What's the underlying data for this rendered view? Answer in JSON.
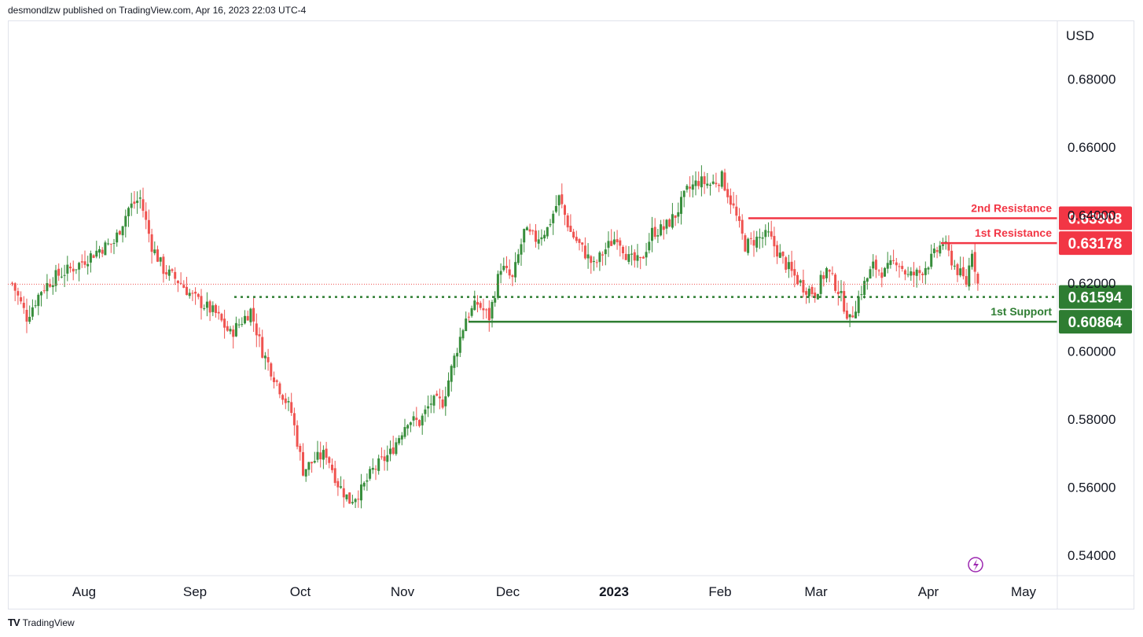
{
  "header": {
    "published_text": "desmondlzw published on TradingView.com, Apr 16, 2023 22:03 UTC-4"
  },
  "footer": {
    "logo_text": "TV",
    "brand": "TradingView"
  },
  "colors": {
    "up": "#388e3c",
    "down": "#ef5350",
    "resistance": "#f23645",
    "support": "#2e7d32",
    "current_price_line": "#ef5350",
    "replay_icon": "#9c27b0"
  },
  "chart_data": {
    "type": "candlestick",
    "currency_label": "USD",
    "ylim": [
      0.534,
      0.697
    ],
    "y_ticks": [
      "0.68000",
      "0.66000",
      "0.64000",
      "0.62000",
      "0.60000",
      "0.58000",
      "0.56000",
      "0.54000"
    ],
    "x_axis_labels": [
      "Aug",
      "Sep",
      "Oct",
      "Nov",
      "Dec",
      "2023",
      "Feb",
      "Mar",
      "Apr",
      "May"
    ],
    "last_price": 0.6197,
    "levels": [
      {
        "label": "2nd Resistance",
        "value": "0.63908",
        "kind": "resistance"
      },
      {
        "label": "1st Resistance",
        "value": "0.63178",
        "kind": "resistance"
      },
      {
        "label": "",
        "value": "0.61594",
        "kind": "support-dotted"
      },
      {
        "label": "1st Support",
        "value": "0.60864",
        "kind": "support"
      }
    ],
    "anchors": [
      {
        "i": 0,
        "v": 0.62
      },
      {
        "i": 5,
        "v": 0.61
      },
      {
        "i": 10,
        "v": 0.618
      },
      {
        "i": 15,
        "v": 0.622
      },
      {
        "i": 22,
        "v": 0.625
      },
      {
        "i": 30,
        "v": 0.63
      },
      {
        "i": 35,
        "v": 0.632
      },
      {
        "i": 40,
        "v": 0.642
      },
      {
        "i": 44,
        "v": 0.645
      },
      {
        "i": 48,
        "v": 0.631
      },
      {
        "i": 52,
        "v": 0.624
      },
      {
        "i": 58,
        "v": 0.62
      },
      {
        "i": 62,
        "v": 0.616
      },
      {
        "i": 70,
        "v": 0.611
      },
      {
        "i": 75,
        "v": 0.605
      },
      {
        "i": 82,
        "v": 0.612
      },
      {
        "i": 86,
        "v": 0.6
      },
      {
        "i": 92,
        "v": 0.589
      },
      {
        "i": 96,
        "v": 0.582
      },
      {
        "i": 100,
        "v": 0.565
      },
      {
        "i": 104,
        "v": 0.568
      },
      {
        "i": 108,
        "v": 0.57
      },
      {
        "i": 112,
        "v": 0.561
      },
      {
        "i": 116,
        "v": 0.556
      },
      {
        "i": 120,
        "v": 0.559
      },
      {
        "i": 124,
        "v": 0.565
      },
      {
        "i": 130,
        "v": 0.57
      },
      {
        "i": 136,
        "v": 0.58
      },
      {
        "i": 140,
        "v": 0.579
      },
      {
        "i": 144,
        "v": 0.585
      },
      {
        "i": 148,
        "v": 0.585
      },
      {
        "i": 152,
        "v": 0.598
      },
      {
        "i": 156,
        "v": 0.61
      },
      {
        "i": 160,
        "v": 0.614
      },
      {
        "i": 164,
        "v": 0.61
      },
      {
        "i": 168,
        "v": 0.625
      },
      {
        "i": 172,
        "v": 0.621
      },
      {
        "i": 176,
        "v": 0.635
      },
      {
        "i": 180,
        "v": 0.633
      },
      {
        "i": 184,
        "v": 0.636
      },
      {
        "i": 188,
        "v": 0.645
      },
      {
        "i": 192,
        "v": 0.635
      },
      {
        "i": 196,
        "v": 0.63
      },
      {
        "i": 200,
        "v": 0.625
      },
      {
        "i": 204,
        "v": 0.63
      },
      {
        "i": 208,
        "v": 0.634
      },
      {
        "i": 212,
        "v": 0.627
      },
      {
        "i": 216,
        "v": 0.626
      },
      {
        "i": 220,
        "v": 0.635
      },
      {
        "i": 224,
        "v": 0.636
      },
      {
        "i": 228,
        "v": 0.64
      },
      {
        "i": 232,
        "v": 0.647
      },
      {
        "i": 236,
        "v": 0.65
      },
      {
        "i": 240,
        "v": 0.649
      },
      {
        "i": 244,
        "v": 0.651
      },
      {
        "i": 248,
        "v": 0.642
      },
      {
        "i": 252,
        "v": 0.631
      },
      {
        "i": 256,
        "v": 0.633
      },
      {
        "i": 260,
        "v": 0.634
      },
      {
        "i": 264,
        "v": 0.628
      },
      {
        "i": 268,
        "v": 0.623
      },
      {
        "i": 272,
        "v": 0.619
      },
      {
        "i": 276,
        "v": 0.617
      },
      {
        "i": 280,
        "v": 0.624
      },
      {
        "i": 284,
        "v": 0.618
      },
      {
        "i": 288,
        "v": 0.609
      },
      {
        "i": 292,
        "v": 0.618
      },
      {
        "i": 296,
        "v": 0.625
      },
      {
        "i": 300,
        "v": 0.623
      },
      {
        "i": 304,
        "v": 0.627
      },
      {
        "i": 308,
        "v": 0.622
      },
      {
        "i": 312,
        "v": 0.623
      },
      {
        "i": 316,
        "v": 0.627
      },
      {
        "i": 320,
        "v": 0.632
      },
      {
        "i": 324,
        "v": 0.625
      },
      {
        "i": 328,
        "v": 0.62
      },
      {
        "i": 330,
        "v": 0.63
      },
      {
        "i": 332,
        "v": 0.6197
      }
    ]
  }
}
